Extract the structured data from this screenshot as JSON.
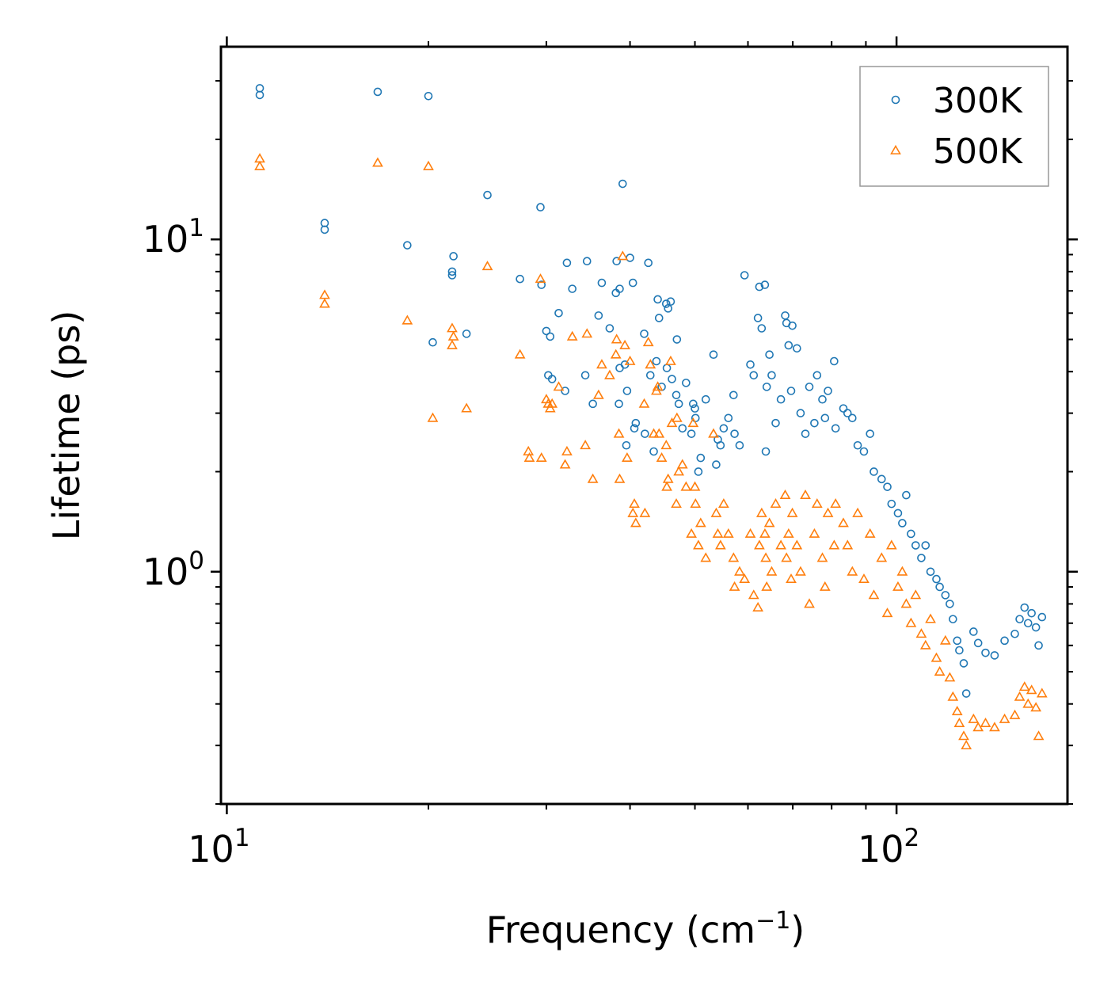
{
  "chart_data": {
    "type": "scatter",
    "title": "",
    "xlabel": "Frequency (cm",
    "xlabel_sup": "−1",
    "xlabel_end": ")",
    "ylabel": "Lifetime (ps)",
    "xscale": "log",
    "yscale": "log",
    "xlim": [
      9.8,
      180
    ],
    "ylim": [
      0.2,
      38
    ],
    "x_major_ticks": [
      {
        "value": 10,
        "base": "10",
        "exp": "1"
      },
      {
        "value": 100,
        "base": "10",
        "exp": "2"
      }
    ],
    "y_major_ticks": [
      {
        "value": 1,
        "base": "10",
        "exp": "0"
      },
      {
        "value": 10,
        "base": "10",
        "exp": "1"
      }
    ],
    "legend_position": "top-right",
    "series": [
      {
        "name": "300K",
        "marker": "circle",
        "color": "#1f77b4",
        "points": [
          [
            11.2,
            28.5
          ],
          [
            11.2,
            27.2
          ],
          [
            14.0,
            11.2
          ],
          [
            14.0,
            10.7
          ],
          [
            16.8,
            27.8
          ],
          [
            18.6,
            9.6
          ],
          [
            20.0,
            27.0
          ],
          [
            20.3,
            4.9
          ],
          [
            21.7,
            8.0
          ],
          [
            21.7,
            7.8
          ],
          [
            21.8,
            8.9
          ],
          [
            22.8,
            5.2
          ],
          [
            24.5,
            13.6
          ],
          [
            27.4,
            7.6
          ],
          [
            29.4,
            12.5
          ],
          [
            29.5,
            7.3
          ],
          [
            30.0,
            5.3
          ],
          [
            30.2,
            3.9
          ],
          [
            30.4,
            5.1
          ],
          [
            30.6,
            3.8
          ],
          [
            31.3,
            6.0
          ],
          [
            32.0,
            3.5
          ],
          [
            32.2,
            8.5
          ],
          [
            32.8,
            7.1
          ],
          [
            34.3,
            3.9
          ],
          [
            34.5,
            8.6
          ],
          [
            35.2,
            3.2
          ],
          [
            35.9,
            5.9
          ],
          [
            36.3,
            7.4
          ],
          [
            37.3,
            5.4
          ],
          [
            38.1,
            6.9
          ],
          [
            38.2,
            8.6
          ],
          [
            38.6,
            7.1
          ],
          [
            38.5,
            3.2
          ],
          [
            38.6,
            4.1
          ],
          [
            39.0,
            14.7
          ],
          [
            39.3,
            4.2
          ],
          [
            39.5,
            2.4
          ],
          [
            39.6,
            3.5
          ],
          [
            40.0,
            8.8
          ],
          [
            40.4,
            7.4
          ],
          [
            40.6,
            2.7
          ],
          [
            40.8,
            2.8
          ],
          [
            42.0,
            5.2
          ],
          [
            42.1,
            2.6
          ],
          [
            42.6,
            8.5
          ],
          [
            42.9,
            3.9
          ],
          [
            43.4,
            2.3
          ],
          [
            43.8,
            4.3
          ],
          [
            44.0,
            6.6
          ],
          [
            44.2,
            5.8
          ],
          [
            44.6,
            3.6
          ],
          [
            45.3,
            6.4
          ],
          [
            45.6,
            6.2
          ],
          [
            45.4,
            4.1
          ],
          [
            46.0,
            6.5
          ],
          [
            46.2,
            3.8
          ],
          [
            46.9,
            3.4
          ],
          [
            47.0,
            5.0
          ],
          [
            47.3,
            3.2
          ],
          [
            47.9,
            2.7
          ],
          [
            48.5,
            3.7
          ],
          [
            49.4,
            2.6
          ],
          [
            49.7,
            3.2
          ],
          [
            50.0,
            3.1
          ],
          [
            50.1,
            2.9
          ],
          [
            50.6,
            2.0
          ],
          [
            51.0,
            2.2
          ],
          [
            51.9,
            3.3
          ],
          [
            53.3,
            4.5
          ],
          [
            53.8,
            2.1
          ],
          [
            54.1,
            2.5
          ],
          [
            54.6,
            2.4
          ],
          [
            55.2,
            2.7
          ],
          [
            56.1,
            2.9
          ],
          [
            57.1,
            3.4
          ],
          [
            57.3,
            2.6
          ],
          [
            58.3,
            2.4
          ],
          [
            59.3,
            7.8
          ],
          [
            60.5,
            4.2
          ],
          [
            61.2,
            3.9
          ],
          [
            62.4,
            7.2
          ],
          [
            62.1,
            5.8
          ],
          [
            62.9,
            5.4
          ],
          [
            63.6,
            7.3
          ],
          [
            63.8,
            2.3
          ],
          [
            64.0,
            3.6
          ],
          [
            64.6,
            4.5
          ],
          [
            65.1,
            3.9
          ],
          [
            66.0,
            2.8
          ],
          [
            67.2,
            3.3
          ],
          [
            68.2,
            5.9
          ],
          [
            68.5,
            5.6
          ],
          [
            69.0,
            4.8
          ],
          [
            69.6,
            3.5
          ],
          [
            69.9,
            5.5
          ],
          [
            71.0,
            4.7
          ],
          [
            71.9,
            3.0
          ],
          [
            73.1,
            2.6
          ],
          [
            74.1,
            3.6
          ],
          [
            75.4,
            2.8
          ],
          [
            76.1,
            3.9
          ],
          [
            77.5,
            3.3
          ],
          [
            78.2,
            2.9
          ],
          [
            79.0,
            3.5
          ],
          [
            80.7,
            4.3
          ],
          [
            81.1,
            2.7
          ],
          [
            83.3,
            3.1
          ],
          [
            84.5,
            3.0
          ],
          [
            85.9,
            2.9
          ],
          [
            87.5,
            2.4
          ],
          [
            89.4,
            2.3
          ],
          [
            91.3,
            2.6
          ],
          [
            92.5,
            2.0
          ],
          [
            95.0,
            1.9
          ],
          [
            96.9,
            1.8
          ],
          [
            98.3,
            1.6
          ],
          [
            100.5,
            1.5
          ],
          [
            102.0,
            1.4
          ],
          [
            103.4,
            1.7
          ],
          [
            105.1,
            1.3
          ],
          [
            106.8,
            1.2
          ],
          [
            108.9,
            1.1
          ],
          [
            110.5,
            1.2
          ],
          [
            112.4,
            1.0
          ],
          [
            114.7,
            0.95
          ],
          [
            116.0,
            0.9
          ],
          [
            118.3,
            0.85
          ],
          [
            120.1,
            0.8
          ],
          [
            121.4,
            0.72
          ],
          [
            123.2,
            0.62
          ],
          [
            124.1,
            0.58
          ],
          [
            126.0,
            0.53
          ],
          [
            127.1,
            0.43
          ],
          [
            130.3,
            0.66
          ],
          [
            132.4,
            0.61
          ],
          [
            135.8,
            0.57
          ],
          [
            140.1,
            0.56
          ],
          [
            145.0,
            0.62
          ],
          [
            150.2,
            0.65
          ],
          [
            152.7,
            0.72
          ],
          [
            155.3,
            0.78
          ],
          [
            157.2,
            0.7
          ],
          [
            159.1,
            0.75
          ],
          [
            161.5,
            0.68
          ],
          [
            163.0,
            0.6
          ],
          [
            164.9,
            0.73
          ]
        ]
      },
      {
        "name": "500K",
        "marker": "triangle",
        "color": "#ff7f0e",
        "points": [
          [
            11.2,
            17.5
          ],
          [
            11.2,
            16.6
          ],
          [
            14.0,
            6.8
          ],
          [
            14.0,
            6.4
          ],
          [
            16.8,
            17.0
          ],
          [
            18.6,
            5.7
          ],
          [
            20.0,
            16.6
          ],
          [
            20.3,
            2.9
          ],
          [
            21.7,
            5.4
          ],
          [
            21.7,
            4.8
          ],
          [
            21.8,
            5.1
          ],
          [
            22.8,
            3.1
          ],
          [
            24.5,
            8.3
          ],
          [
            27.4,
            4.5
          ],
          [
            28.2,
            2.3
          ],
          [
            28.3,
            2.2
          ],
          [
            29.4,
            7.6
          ],
          [
            29.5,
            2.2
          ],
          [
            30.0,
            3.3
          ],
          [
            30.2,
            3.2
          ],
          [
            30.4,
            3.1
          ],
          [
            30.6,
            3.2
          ],
          [
            31.3,
            3.6
          ],
          [
            32.0,
            2.1
          ],
          [
            32.2,
            2.3
          ],
          [
            32.8,
            5.1
          ],
          [
            34.3,
            2.4
          ],
          [
            34.5,
            5.2
          ],
          [
            35.2,
            1.9
          ],
          [
            35.9,
            3.4
          ],
          [
            36.3,
            4.2
          ],
          [
            37.3,
            3.9
          ],
          [
            38.1,
            4.5
          ],
          [
            38.2,
            5.0
          ],
          [
            38.6,
            1.9
          ],
          [
            38.5,
            2.6
          ],
          [
            39.0,
            8.9
          ],
          [
            39.3,
            4.8
          ],
          [
            39.6,
            2.2
          ],
          [
            40.0,
            4.3
          ],
          [
            40.4,
            1.5
          ],
          [
            40.6,
            1.6
          ],
          [
            40.8,
            1.4
          ],
          [
            42.0,
            3.2
          ],
          [
            42.1,
            1.5
          ],
          [
            42.6,
            4.9
          ],
          [
            42.9,
            4.2
          ],
          [
            43.4,
            2.6
          ],
          [
            43.8,
            3.5
          ],
          [
            44.0,
            3.6
          ],
          [
            44.2,
            2.6
          ],
          [
            44.6,
            2.2
          ],
          [
            45.3,
            2.4
          ],
          [
            45.6,
            1.9
          ],
          [
            45.4,
            1.8
          ],
          [
            46.0,
            4.3
          ],
          [
            46.2,
            2.8
          ],
          [
            46.9,
            1.6
          ],
          [
            47.0,
            2.9
          ],
          [
            47.3,
            2.0
          ],
          [
            47.9,
            2.1
          ],
          [
            48.5,
            1.8
          ],
          [
            49.4,
            1.3
          ],
          [
            49.7,
            2.8
          ],
          [
            50.0,
            1.8
          ],
          [
            50.1,
            1.6
          ],
          [
            50.6,
            1.2
          ],
          [
            51.0,
            1.4
          ],
          [
            51.9,
            1.1
          ],
          [
            53.3,
            2.6
          ],
          [
            53.8,
            1.5
          ],
          [
            54.1,
            1.3
          ],
          [
            54.6,
            1.2
          ],
          [
            55.2,
            1.6
          ],
          [
            56.1,
            1.3
          ],
          [
            57.1,
            1.1
          ],
          [
            57.3,
            0.9
          ],
          [
            58.3,
            1.0
          ],
          [
            59.3,
            0.95
          ],
          [
            60.5,
            1.3
          ],
          [
            61.2,
            0.85
          ],
          [
            62.4,
            1.2
          ],
          [
            62.1,
            0.78
          ],
          [
            62.9,
            1.5
          ],
          [
            63.6,
            1.3
          ],
          [
            63.8,
            1.1
          ],
          [
            64.0,
            0.9
          ],
          [
            64.6,
            1.4
          ],
          [
            65.1,
            1.0
          ],
          [
            66.0,
            1.6
          ],
          [
            67.2,
            1.2
          ],
          [
            68.2,
            1.7
          ],
          [
            68.5,
            1.1
          ],
          [
            69.0,
            1.3
          ],
          [
            69.6,
            0.95
          ],
          [
            69.9,
            1.5
          ],
          [
            71.0,
            1.2
          ],
          [
            71.9,
            1.0
          ],
          [
            73.1,
            1.7
          ],
          [
            74.1,
            0.8
          ],
          [
            75.4,
            1.3
          ],
          [
            76.1,
            1.6
          ],
          [
            77.5,
            1.1
          ],
          [
            78.2,
            0.9
          ],
          [
            79.0,
            1.5
          ],
          [
            80.7,
            1.2
          ],
          [
            81.1,
            1.6
          ],
          [
            83.3,
            1.4
          ],
          [
            84.5,
            1.2
          ],
          [
            85.9,
            1.0
          ],
          [
            87.5,
            1.5
          ],
          [
            89.4,
            0.95
          ],
          [
            91.3,
            1.3
          ],
          [
            92.5,
            0.85
          ],
          [
            95.0,
            1.1
          ],
          [
            96.9,
            0.75
          ],
          [
            98.3,
            1.2
          ],
          [
            100.5,
            0.9
          ],
          [
            102.0,
            1.0
          ],
          [
            103.4,
            0.8
          ],
          [
            105.1,
            0.7
          ],
          [
            106.8,
            0.85
          ],
          [
            108.9,
            0.65
          ],
          [
            110.5,
            0.6
          ],
          [
            112.4,
            0.72
          ],
          [
            114.7,
            0.55
          ],
          [
            116.0,
            0.5
          ],
          [
            118.3,
            0.62
          ],
          [
            120.1,
            0.48
          ],
          [
            121.4,
            0.42
          ],
          [
            123.2,
            0.38
          ],
          [
            124.1,
            0.35
          ],
          [
            126.0,
            0.32
          ],
          [
            127.1,
            0.3
          ],
          [
            130.3,
            0.36
          ],
          [
            132.4,
            0.34
          ],
          [
            135.8,
            0.35
          ],
          [
            140.1,
            0.34
          ],
          [
            145.0,
            0.36
          ],
          [
            150.2,
            0.37
          ],
          [
            152.7,
            0.42
          ],
          [
            155.3,
            0.45
          ],
          [
            157.2,
            0.4
          ],
          [
            159.1,
            0.44
          ],
          [
            161.5,
            0.39
          ],
          [
            163.0,
            0.32
          ],
          [
            164.9,
            0.43
          ]
        ]
      }
    ]
  }
}
